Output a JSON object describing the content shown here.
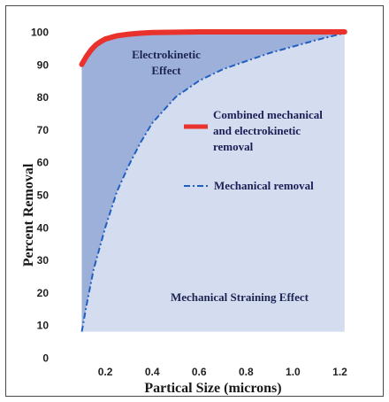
{
  "chart_data": {
    "type": "area",
    "xlabel": "Partical Size (microns)",
    "ylabel": "Percent Removal",
    "xlim": [
      0.0,
      1.3
    ],
    "ylim": [
      0,
      100
    ],
    "x_ticks": [
      "0.2",
      "0.4",
      "0.6",
      "0.8",
      "1.0",
      "1.2"
    ],
    "x_tick_values": [
      0.2,
      0.4,
      0.6,
      0.8,
      1.0,
      1.2
    ],
    "y_ticks": [
      "0",
      "10",
      "20",
      "30",
      "40",
      "50",
      "60",
      "70",
      "80",
      "90",
      "100"
    ],
    "y_tick_values": [
      0,
      10,
      20,
      30,
      40,
      50,
      60,
      70,
      80,
      90,
      100
    ],
    "grid": false,
    "legend_position": "right",
    "series": [
      {
        "name": "Combined mechanical and electrokinetic removal",
        "line_style": "solid",
        "color": "#e8322b",
        "x": [
          0.1,
          0.12,
          0.14,
          0.16,
          0.18,
          0.2,
          0.25,
          0.3,
          0.35,
          0.4,
          0.5,
          0.6,
          0.7,
          0.8,
          0.9,
          1.0,
          1.1,
          1.22
        ],
        "y": [
          90.0,
          92.5,
          94.5,
          96.0,
          97.0,
          97.8,
          98.8,
          99.3,
          99.6,
          99.8,
          99.9,
          100,
          100,
          100,
          100,
          100,
          100,
          100
        ]
      },
      {
        "name": "Mechanical removal",
        "line_style": "dash-dot",
        "color": "#1f5fc0",
        "x": [
          0.1,
          0.12,
          0.15,
          0.2,
          0.25,
          0.3,
          0.35,
          0.4,
          0.45,
          0.5,
          0.6,
          0.7,
          0.8,
          0.9,
          1.0,
          1.1,
          1.2,
          1.22
        ],
        "y": [
          8,
          16,
          27,
          40,
          51,
          59,
          66,
          72,
          76,
          80,
          85,
          88.5,
          91,
          93.5,
          95.5,
          97.5,
          99.3,
          99.6
        ]
      }
    ],
    "regions": {
      "upper_label_line1": "Electrokinetic",
      "upper_label_line2": "Effect",
      "lower_label": "Mechanical Straining Effect"
    },
    "legend": {
      "combined_line1": "Combined mechanical",
      "combined_line2": "and electrokinetic",
      "combined_line3": "removal",
      "mechanical": "Mechanical removal"
    },
    "colors": {
      "electrokinetic_fill": "#9db0d9",
      "mechanical_fill": "#d4dcf0",
      "axis": "#222222"
    }
  }
}
